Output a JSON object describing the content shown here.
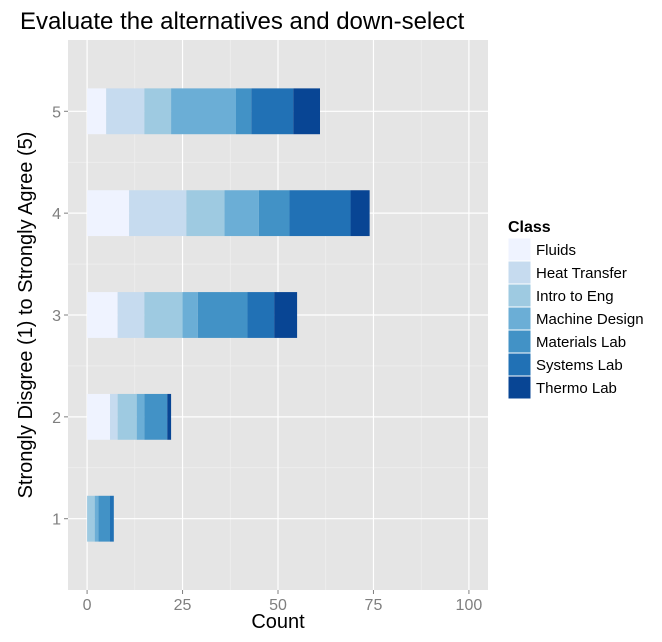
{
  "chart_data": {
    "type": "bar",
    "orientation": "horizontal",
    "stacked": true,
    "title": "Evaluate the alternatives and down-select",
    "xlabel": "Count",
    "ylabel": "Strongly Disgree (1) to Strongly Agree (5)",
    "categories": [
      "1",
      "2",
      "3",
      "4",
      "5"
    ],
    "x_ticks": [
      "0",
      "25",
      "50",
      "75",
      "100"
    ],
    "xlim": [
      -5,
      105
    ],
    "ylim": [
      0.3,
      5.7
    ],
    "grid": true,
    "legend_title": "Class",
    "legend_position": "right",
    "series": [
      {
        "name": "Fluids",
        "color": "#eff3ff",
        "values": [
          0,
          6,
          8,
          11,
          5
        ]
      },
      {
        "name": "Heat Transfer",
        "color": "#c6dbef",
        "values": [
          0,
          2,
          7,
          15,
          10
        ]
      },
      {
        "name": "Intro to Eng",
        "color": "#9ecae1",
        "values": [
          2,
          5,
          10,
          10,
          7
        ]
      },
      {
        "name": "Machine Design",
        "color": "#6baed6",
        "values": [
          1,
          2,
          4,
          9,
          17
        ]
      },
      {
        "name": "Materials Lab",
        "color": "#4292c6",
        "values": [
          3,
          6,
          13,
          8,
          4
        ]
      },
      {
        "name": "Systems Lab",
        "color": "#2171b5",
        "values": [
          1,
          0,
          7,
          16,
          11
        ]
      },
      {
        "name": "Thermo Lab",
        "color": "#084594",
        "values": [
          0,
          1,
          6,
          5,
          7
        ]
      }
    ]
  }
}
